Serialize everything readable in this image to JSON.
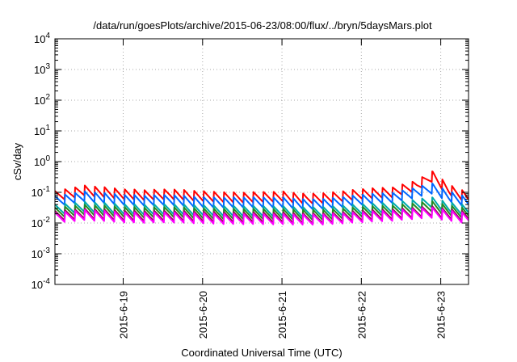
{
  "chart_data": {
    "type": "line",
    "title": "/data/run/goesPlots/archive/2015-06-23/08:00/flux/../bryn/5daysMars.plot",
    "xlabel": "Coordinated Universal Time (UTC)",
    "ylabel": "cSv/day",
    "yscale": "log",
    "ylim": [
      0.0001,
      10000
    ],
    "xlim": [
      18.14,
      23.35
    ],
    "y_ticks": [
      {
        "value": 0.0001,
        "base": "10",
        "exp": "-4"
      },
      {
        "value": 0.001,
        "base": "10",
        "exp": "-3"
      },
      {
        "value": 0.01,
        "base": "10",
        "exp": "-2"
      },
      {
        "value": 0.1,
        "base": "10",
        "exp": "-1"
      },
      {
        "value": 1,
        "base": "10",
        "exp": "0"
      },
      {
        "value": 10,
        "base": "10",
        "exp": "1"
      },
      {
        "value": 100,
        "base": "10",
        "exp": "2"
      },
      {
        "value": 1000,
        "base": "10",
        "exp": "3"
      },
      {
        "value": 10000,
        "base": "10",
        "exp": "4"
      }
    ],
    "x_ticks": [
      {
        "value": 19,
        "label": "2015-6-19"
      },
      {
        "value": 20,
        "label": "2015-6-20"
      },
      {
        "value": 21,
        "label": "2015-6-21"
      },
      {
        "value": 22,
        "label": "2015-6-22"
      },
      {
        "value": 23,
        "label": "2015-6-23"
      }
    ],
    "grid": true,
    "sawtooth_period_days": 0.125,
    "sawtooth_decay": 0.45,
    "x": [
      18.14,
      18.5,
      19.0,
      19.3,
      19.6,
      20.0,
      20.5,
      21.0,
      21.3,
      21.6,
      22.0,
      22.4,
      22.7,
      22.9,
      23.1,
      23.35
    ],
    "series": [
      {
        "color": "#ff0000",
        "values": [
          0.11,
          0.17,
          0.13,
          0.12,
          0.13,
          0.11,
          0.1,
          0.11,
          0.09,
          0.1,
          0.13,
          0.15,
          0.25,
          0.5,
          0.18,
          0.1
        ]
      },
      {
        "color": "#0066ff",
        "values": [
          0.075,
          0.11,
          0.085,
          0.08,
          0.085,
          0.07,
          0.07,
          0.07,
          0.06,
          0.065,
          0.085,
          0.1,
          0.15,
          0.2,
          0.11,
          0.07
        ]
      },
      {
        "color": "#00aaaa",
        "values": [
          0.04,
          0.05,
          0.042,
          0.04,
          0.042,
          0.038,
          0.036,
          0.036,
          0.033,
          0.035,
          0.042,
          0.048,
          0.06,
          0.07,
          0.048,
          0.038
        ]
      },
      {
        "color": "#228b22",
        "values": [
          0.032,
          0.04,
          0.034,
          0.032,
          0.034,
          0.03,
          0.029,
          0.029,
          0.027,
          0.028,
          0.034,
          0.038,
          0.046,
          0.052,
          0.038,
          0.03
        ]
      },
      {
        "color": "#8b1a4a",
        "values": [
          0.025,
          0.03,
          0.026,
          0.025,
          0.026,
          0.024,
          0.023,
          0.023,
          0.021,
          0.022,
          0.026,
          0.029,
          0.033,
          0.036,
          0.029,
          0.024
        ]
      },
      {
        "color": "#ff00ff",
        "values": [
          0.022,
          0.027,
          0.023,
          0.022,
          0.023,
          0.021,
          0.02,
          0.02,
          0.019,
          0.02,
          0.023,
          0.026,
          0.03,
          0.032,
          0.026,
          0.021
        ]
      }
    ]
  }
}
